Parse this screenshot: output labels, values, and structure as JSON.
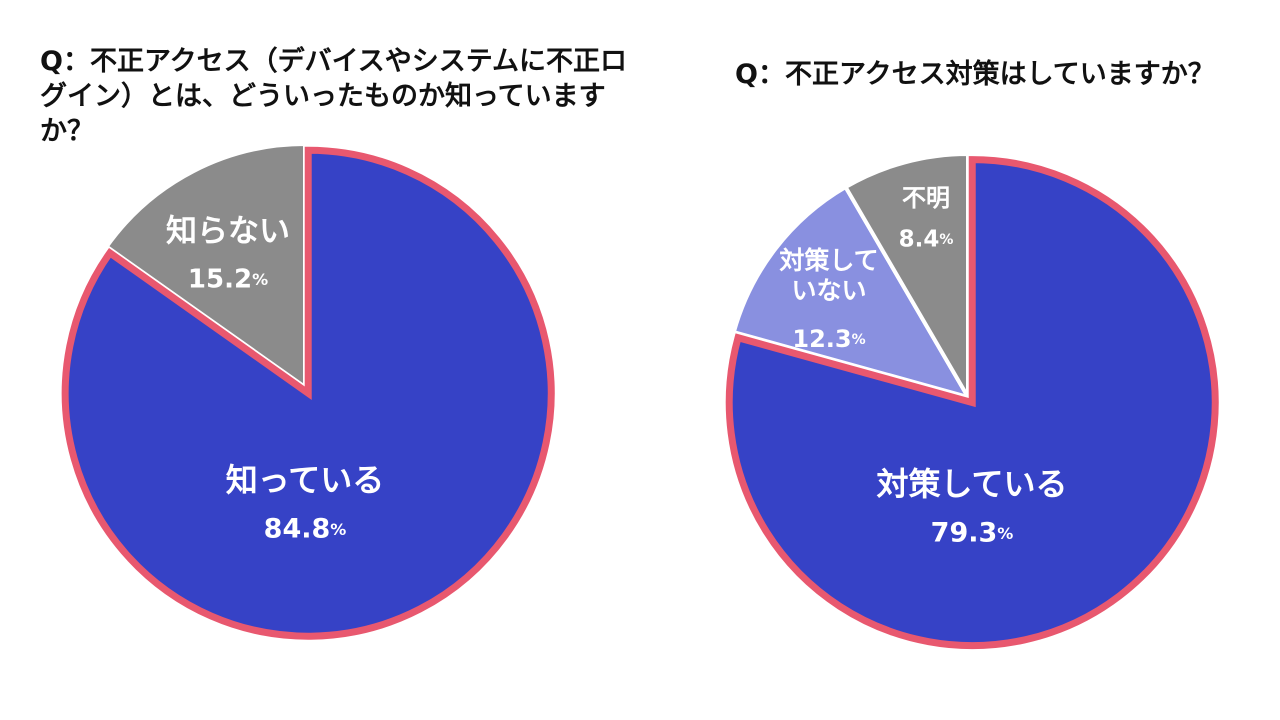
{
  "colors": {
    "main_slice": "#3642c6",
    "minor_slice": "#8b8b8b",
    "light_slice": "#8990e0",
    "highlight_outline": "#e8586f",
    "label_text": "#ffffff",
    "title_text": "#111111"
  },
  "chart_data": [
    {
      "type": "pie",
      "title": "Q：不正アクセス（デバイスやシステムに不正ログイン）とは、どういったものか知っていますか？",
      "slices": [
        {
          "label": "知っている",
          "value": 84.8,
          "value_text": "84.8",
          "unit": "%",
          "color": "#3642c6",
          "exploded": true,
          "highlighted": true
        },
        {
          "label": "知らない",
          "value": 15.2,
          "value_text": "15.2",
          "unit": "%",
          "color": "#8b8b8b",
          "exploded": false,
          "highlighted": false
        }
      ]
    },
    {
      "type": "pie",
      "title": "Q：不正アクセス対策はしていますか？",
      "slices": [
        {
          "label": "対策している",
          "value": 79.3,
          "value_text": "79.3",
          "unit": "%",
          "color": "#3642c6",
          "exploded": true,
          "highlighted": true
        },
        {
          "label": "対策して\nいない",
          "value": 12.3,
          "value_text": "12.3",
          "unit": "%",
          "color": "#8990e0",
          "exploded": false,
          "highlighted": false
        },
        {
          "label": "不明",
          "value": 8.4,
          "value_text": "8.4",
          "unit": "%",
          "color": "#8b8b8b",
          "exploded": false,
          "highlighted": false
        }
      ]
    }
  ]
}
